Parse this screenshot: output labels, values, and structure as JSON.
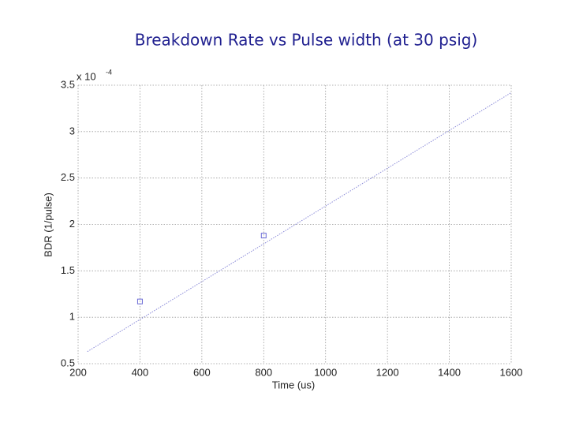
{
  "chart_data": {
    "type": "scatter",
    "title": "Breakdown Rate vs Pulse width (at 30 psig)",
    "x_label": "Time (us)",
    "y_label": "BDR (1/pulse)",
    "y_exponent": {
      "base": "x 10",
      "power": "-4"
    },
    "xlim": [
      200,
      1600
    ],
    "xticks": [
      200,
      400,
      600,
      800,
      1000,
      1200,
      1400,
      1600
    ],
    "ylim": [
      0.5,
      3.5
    ],
    "yticks": [
      0.5,
      1,
      1.5,
      2,
      2.5,
      3,
      3.5
    ],
    "grid": true,
    "series": [
      {
        "color": "#6b6bd6",
        "marker": "square",
        "x": [
          400,
          800
        ],
        "values": [
          1.17,
          1.88
        ]
      },
      {
        "color": "#8a8ad8",
        "line": "dotted",
        "x": [
          230,
          1600
        ],
        "values": [
          0.63,
          3.42
        ]
      }
    ]
  }
}
